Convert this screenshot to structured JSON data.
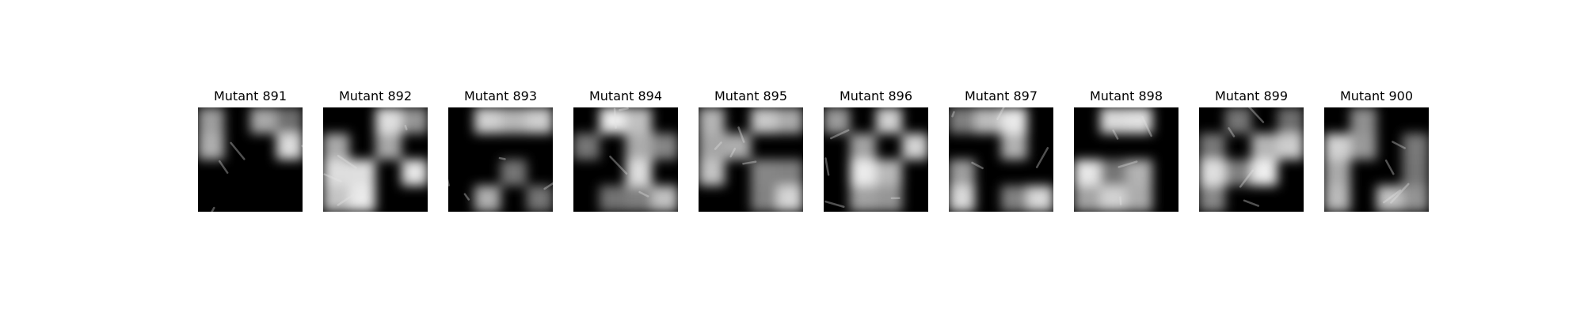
{
  "panels": [
    {
      "title": "Mutant 891",
      "seed": 891
    },
    {
      "title": "Mutant 892",
      "seed": 892
    },
    {
      "title": "Mutant 893",
      "seed": 893
    },
    {
      "title": "Mutant 894",
      "seed": 894
    },
    {
      "title": "Mutant 895",
      "seed": 895
    },
    {
      "title": "Mutant 896",
      "seed": 896
    },
    {
      "title": "Mutant 897",
      "seed": 897
    },
    {
      "title": "Mutant 898",
      "seed": 898
    },
    {
      "title": "Mutant 899",
      "seed": 899
    },
    {
      "title": "Mutant 900",
      "seed": 900
    }
  ],
  "colors": {
    "background": "#ffffff",
    "dark": "#000000",
    "light": "#e6e6e6"
  }
}
